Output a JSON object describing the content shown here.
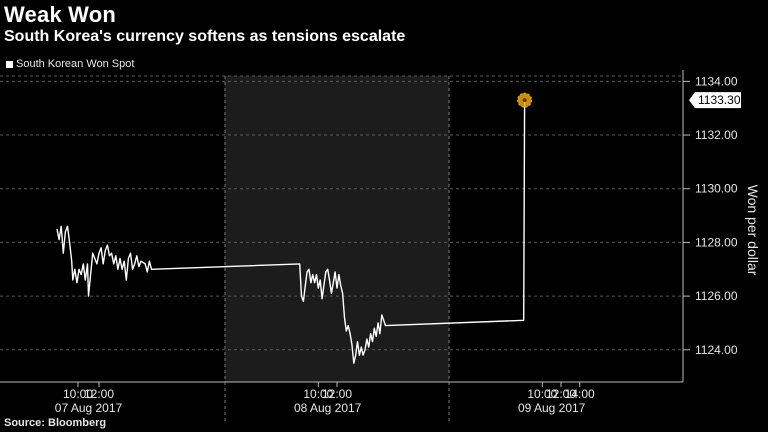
{
  "header": {
    "title": "Weak Won",
    "subtitle": "South Korea's currency softens as tensions escalate"
  },
  "footer": {
    "source": "Source: Bloomberg"
  },
  "colors": {
    "background": "#000000",
    "line": "#ffffff",
    "shaded_session": "#1c1c1c",
    "marker": "#f0a800"
  },
  "chart_data": {
    "type": "line",
    "title": "Weak Won",
    "subtitle": "South Korea's currency softens as tensions escalate",
    "ylabel": "Won per dollar",
    "ylim": [
      1122.8,
      1134.2
    ],
    "y_ticks": [
      "1124.00",
      "1126.00",
      "1128.00",
      "1130.00",
      "1132.00",
      "1134.00"
    ],
    "y_tick_values": [
      1124,
      1126,
      1128,
      1130,
      1132,
      1134
    ],
    "x_time_ticks": [
      {
        "label": "10:00",
        "t": 10.0
      },
      {
        "label": "12:00",
        "t": 12.0
      },
      {
        "label": "10:00",
        "t": 34.0
      },
      {
        "label": "12:00",
        "t": 36.0
      },
      {
        "label": "10:00",
        "t": 58.0
      },
      {
        "label": "12:00",
        "t": 60.0
      },
      {
        "label": "14:00",
        "t": 62.0
      }
    ],
    "x_date_labels": [
      {
        "label": "07 Aug 2017",
        "t": 11.0
      },
      {
        "label": "08 Aug 2017",
        "t": 35.0
      },
      {
        "label": "09 Aug 2017",
        "t": 59.0
      }
    ],
    "grid": true,
    "legend_position": "top-left",
    "last_value_label": "1133.30",
    "series": [
      {
        "name": "South Korean Won Spot",
        "points": [
          [
            8.0,
            1128.5
          ],
          [
            8.2,
            1128.1
          ],
          [
            8.4,
            1128.6
          ],
          [
            8.6,
            1127.6
          ],
          [
            8.8,
            1128.4
          ],
          [
            9.0,
            1128.6
          ],
          [
            9.2,
            1128.0
          ],
          [
            9.4,
            1127.3
          ],
          [
            9.5,
            1126.6
          ],
          [
            9.7,
            1127.0
          ],
          [
            9.9,
            1126.5
          ],
          [
            10.1,
            1127.0
          ],
          [
            10.3,
            1126.8
          ],
          [
            10.5,
            1127.2
          ],
          [
            10.7,
            1126.6
          ],
          [
            10.9,
            1127.2
          ],
          [
            11.0,
            1126.0
          ],
          [
            11.2,
            1126.8
          ],
          [
            11.4,
            1127.6
          ],
          [
            11.6,
            1127.4
          ],
          [
            11.8,
            1127.2
          ],
          [
            12.0,
            1127.6
          ],
          [
            12.2,
            1127.8
          ],
          [
            12.4,
            1127.2
          ],
          [
            12.6,
            1127.7
          ],
          [
            12.8,
            1127.9
          ],
          [
            13.0,
            1127.5
          ],
          [
            13.2,
            1127.6
          ],
          [
            13.4,
            1127.2
          ],
          [
            13.6,
            1127.5
          ],
          [
            13.8,
            1127.0
          ],
          [
            14.0,
            1127.4
          ],
          [
            14.2,
            1127.0
          ],
          [
            14.4,
            1127.3
          ],
          [
            14.6,
            1126.6
          ],
          [
            14.8,
            1127.4
          ],
          [
            15.0,
            1127.6
          ],
          [
            15.2,
            1127.0
          ],
          [
            15.4,
            1127.2
          ],
          [
            15.6,
            1127.5
          ],
          [
            15.8,
            1127.1
          ],
          [
            16.0,
            1127.3
          ],
          [
            16.4,
            1127.2
          ],
          [
            16.6,
            1126.9
          ],
          [
            16.8,
            1127.3
          ],
          [
            17.0,
            1127.0
          ],
          [
            32.0,
            1127.2
          ],
          [
            32.2,
            1126.0
          ],
          [
            32.4,
            1125.8
          ],
          [
            32.6,
            1126.4
          ],
          [
            32.8,
            1126.9
          ],
          [
            33.0,
            1127.0
          ],
          [
            33.2,
            1126.5
          ],
          [
            33.4,
            1126.8
          ],
          [
            33.6,
            1126.5
          ],
          [
            33.8,
            1126.8
          ],
          [
            34.0,
            1126.3
          ],
          [
            34.2,
            1126.6
          ],
          [
            34.4,
            1125.9
          ],
          [
            34.6,
            1126.4
          ],
          [
            34.8,
            1126.9
          ],
          [
            35.0,
            1127.0
          ],
          [
            35.2,
            1126.6
          ],
          [
            35.4,
            1126.1
          ],
          [
            35.6,
            1126.5
          ],
          [
            35.8,
            1126.9
          ],
          [
            36.0,
            1126.3
          ],
          [
            36.2,
            1126.8
          ],
          [
            36.4,
            1126.4
          ],
          [
            36.6,
            1126.1
          ],
          [
            36.8,
            1125.2
          ],
          [
            37.0,
            1124.7
          ],
          [
            37.2,
            1124.9
          ],
          [
            37.4,
            1124.6
          ],
          [
            37.6,
            1124.2
          ],
          [
            37.8,
            1123.5
          ],
          [
            38.0,
            1123.8
          ],
          [
            38.2,
            1124.3
          ],
          [
            38.4,
            1123.8
          ],
          [
            38.6,
            1124.1
          ],
          [
            38.8,
            1123.8
          ],
          [
            39.0,
            1124.0
          ],
          [
            39.2,
            1124.4
          ],
          [
            39.4,
            1124.1
          ],
          [
            39.6,
            1124.6
          ],
          [
            39.8,
            1124.3
          ],
          [
            40.0,
            1124.8
          ],
          [
            40.2,
            1124.5
          ],
          [
            40.4,
            1125.0
          ],
          [
            40.6,
            1124.6
          ],
          [
            40.8,
            1125.3
          ],
          [
            41.0,
            1125.1
          ],
          [
            41.2,
            1124.9
          ],
          [
            56.0,
            1125.1
          ],
          [
            56.1,
            1133.3
          ]
        ]
      }
    ]
  }
}
